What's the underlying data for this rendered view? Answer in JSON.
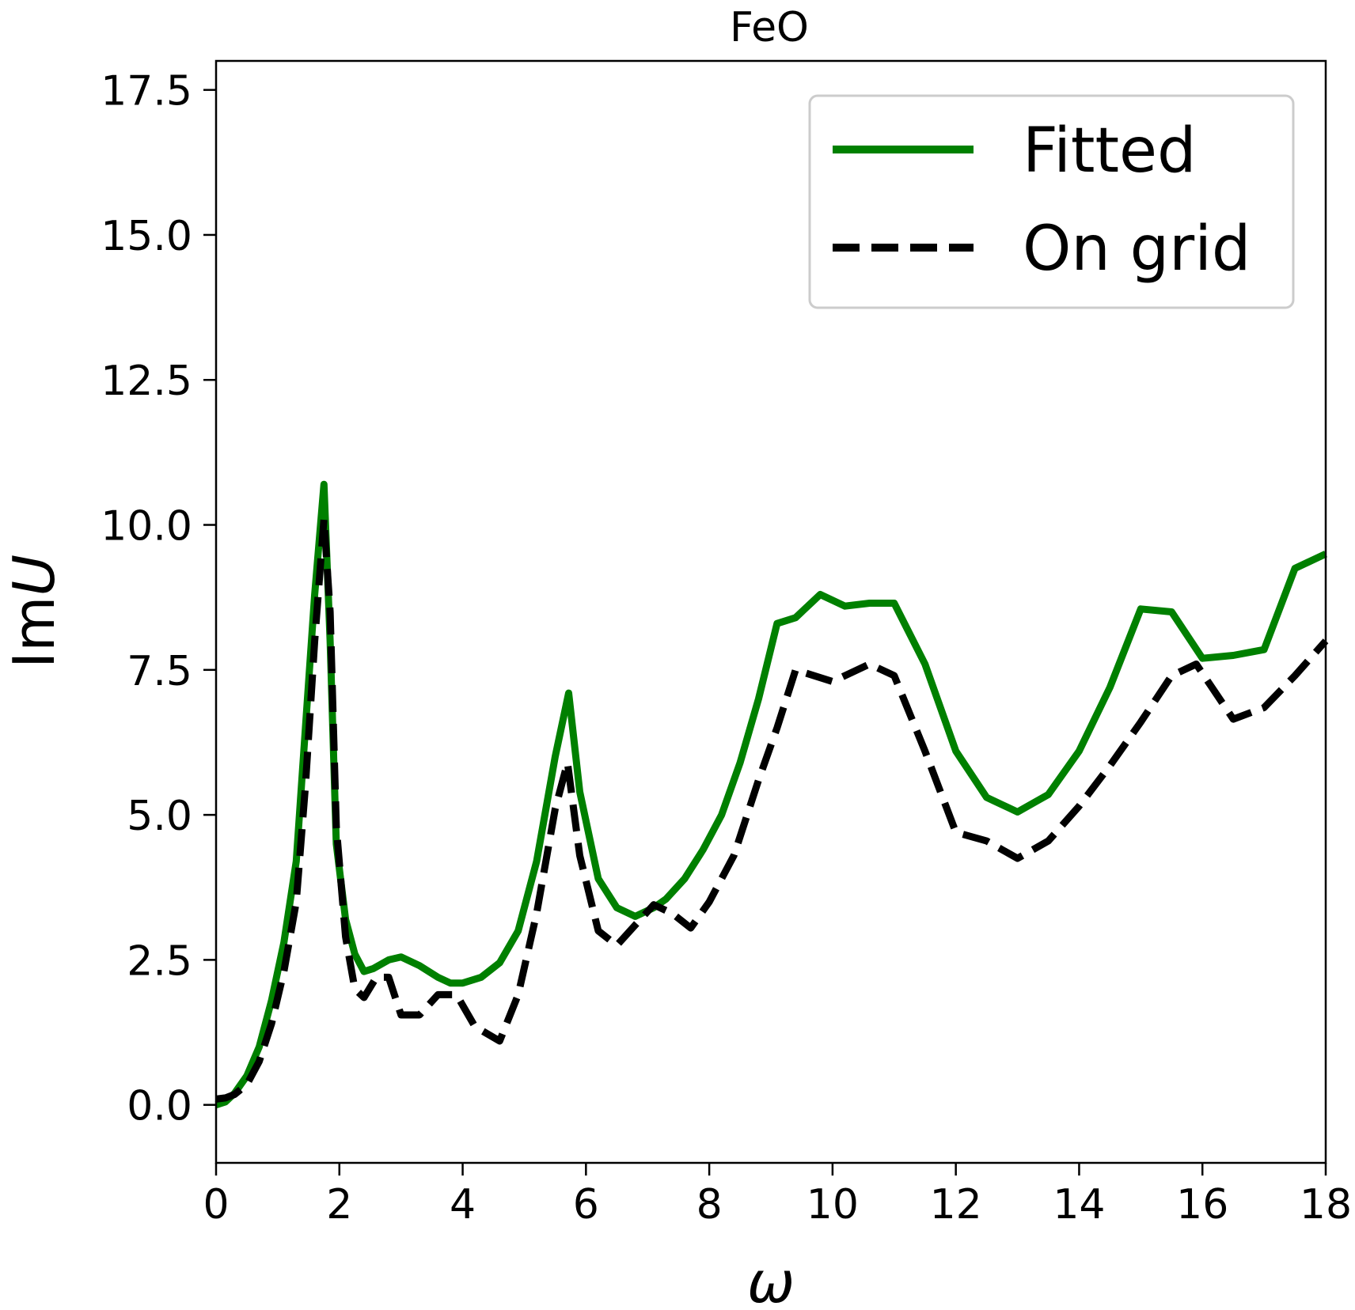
{
  "chart_data": {
    "type": "line",
    "title": "FeO",
    "xlabel": "ω",
    "ylabel_prefix": "Im",
    "ylabel_var": "U",
    "xlim": [
      0,
      18
    ],
    "ylim": [
      -1,
      18
    ],
    "xticks": [
      0,
      2,
      4,
      6,
      8,
      10,
      12,
      14,
      16,
      18
    ],
    "xtick_labels": [
      "0",
      "2",
      "4",
      "6",
      "8",
      "10",
      "12",
      "14",
      "16",
      "18"
    ],
    "yticks": [
      0,
      2.5,
      5,
      7.5,
      10,
      12.5,
      15,
      17.5
    ],
    "ytick_labels": [
      "0.0",
      "2.5",
      "5.0",
      "7.5",
      "10.0",
      "12.5",
      "15.0",
      "17.5"
    ],
    "grid": false,
    "legend_position": "top-right",
    "series": [
      {
        "name": "Fitted",
        "color": "#008000",
        "style": "solid",
        "x": [
          0,
          0.15,
          0.3,
          0.5,
          0.7,
          0.9,
          1.1,
          1.3,
          1.45,
          1.6,
          1.75,
          1.85,
          1.95,
          2.1,
          2.25,
          2.4,
          2.55,
          2.8,
          3.0,
          3.3,
          3.6,
          3.8,
          4.0,
          4.3,
          4.6,
          4.9,
          5.2,
          5.5,
          5.72,
          5.9,
          6.2,
          6.5,
          6.8,
          7.1,
          7.3,
          7.6,
          7.9,
          8.2,
          8.5,
          8.8,
          9.1,
          9.4,
          9.8,
          10.2,
          10.6,
          11.0,
          11.5,
          12.0,
          12.5,
          13.0,
          13.5,
          14.0,
          14.5,
          15.0,
          15.5,
          16.0,
          16.5,
          17.0,
          17.5,
          18.0
        ],
        "y": [
          0.0,
          0.05,
          0.2,
          0.5,
          1.0,
          1.8,
          2.8,
          4.2,
          6.5,
          8.8,
          10.7,
          8.0,
          4.5,
          3.2,
          2.6,
          2.3,
          2.35,
          2.5,
          2.55,
          2.4,
          2.2,
          2.1,
          2.1,
          2.2,
          2.45,
          3.0,
          4.2,
          6.0,
          7.1,
          5.4,
          3.9,
          3.4,
          3.25,
          3.4,
          3.55,
          3.9,
          4.4,
          5.0,
          5.9,
          7.0,
          8.3,
          8.4,
          8.8,
          8.6,
          8.65,
          8.65,
          7.6,
          6.1,
          5.3,
          5.05,
          5.35,
          6.1,
          7.2,
          8.55,
          8.5,
          7.7,
          7.75,
          7.85,
          9.25,
          9.5
        ]
      },
      {
        "name": "On grid",
        "color": "#000000",
        "style": "dashed",
        "x": [
          0,
          0.15,
          0.3,
          0.5,
          0.7,
          0.9,
          1.1,
          1.3,
          1.45,
          1.6,
          1.75,
          1.85,
          1.95,
          2.1,
          2.25,
          2.4,
          2.6,
          2.8,
          3.0,
          3.3,
          3.6,
          3.9,
          4.2,
          4.6,
          4.9,
          5.2,
          5.5,
          5.7,
          5.9,
          6.2,
          6.5,
          6.8,
          7.1,
          7.4,
          7.7,
          8.0,
          8.4,
          8.8,
          9.1,
          9.4,
          10.0,
          10.6,
          11.0,
          11.5,
          12.0,
          12.5,
          13.0,
          13.5,
          14.0,
          14.5,
          15.0,
          15.5,
          15.9,
          16.5,
          17.0,
          17.5,
          18.0
        ],
        "y": [
          0.1,
          0.12,
          0.18,
          0.35,
          0.75,
          1.4,
          2.3,
          3.5,
          5.5,
          8.0,
          10.1,
          8.5,
          4.8,
          2.9,
          2.0,
          1.85,
          2.2,
          2.2,
          1.55,
          1.55,
          1.9,
          1.9,
          1.35,
          1.1,
          1.9,
          3.3,
          5.1,
          5.9,
          4.3,
          3.0,
          2.75,
          3.1,
          3.45,
          3.3,
          3.05,
          3.5,
          4.3,
          5.6,
          6.5,
          7.5,
          7.3,
          7.6,
          7.4,
          6.1,
          4.7,
          4.55,
          4.25,
          4.55,
          5.15,
          5.85,
          6.6,
          7.4,
          7.6,
          6.65,
          6.85,
          7.4,
          8.0
        ]
      }
    ]
  }
}
